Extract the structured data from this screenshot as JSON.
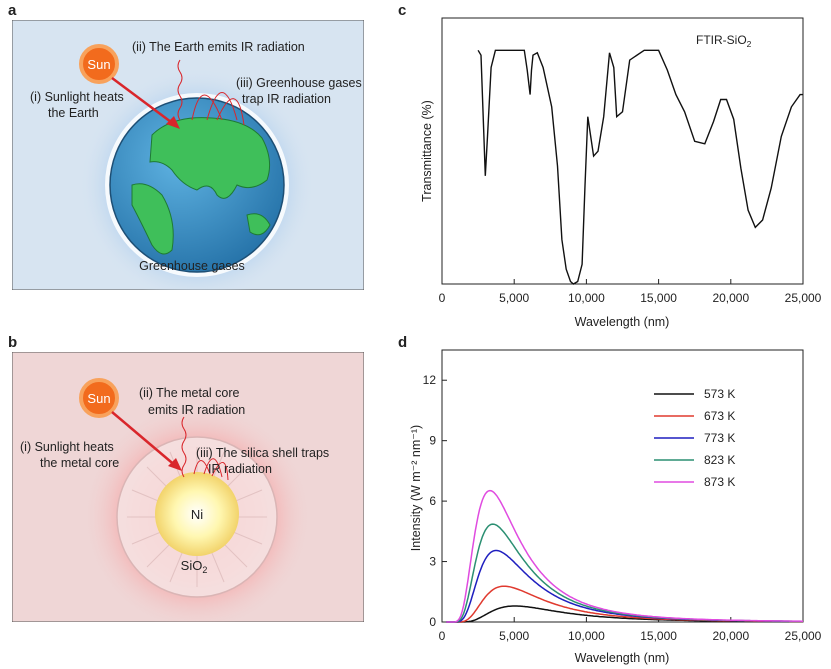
{
  "panels": {
    "a": {
      "letter": "a",
      "sun": "Sun",
      "step1_line1": "(i) Sunlight heats",
      "step1_line2": "the Earth",
      "step2": "(ii) The Earth emits IR radiation",
      "step3_line1": "(iii) Greenhouse gases",
      "step3_line2": "trap IR radiation",
      "caption": "Greenhouse gases"
    },
    "b": {
      "letter": "b",
      "sun": "Sun",
      "step1_line1": "(i) Sunlight heats",
      "step1_line2": "the metal core",
      "step2_line1": "(ii) The metal core",
      "step2_line2": "emits IR radiation",
      "step3_line1": "(iii) The silica shell traps",
      "step3_line2": "IR radiation",
      "core": "Ni",
      "shell": "SiO",
      "shell_sub": "2"
    },
    "c": {
      "letter": "c"
    },
    "d": {
      "letter": "d"
    }
  },
  "colors": {
    "sun": "#f26b1d",
    "arrow": "#d9262b",
    "ocean": "#3a8fc6",
    "land": "#3fbf5a",
    "halo": "#b7d3ee",
    "panel_a_bg": "#d7e4f1",
    "panel_b_bg": "#efd6d6"
  },
  "chart_data": [
    {
      "type": "line",
      "panel": "c",
      "annotation": "FTIR-SiO",
      "annotation_sub": "2",
      "xlabel": "Wavelength (nm)",
      "ylabel": "Transmittance (%)",
      "xlim": [
        0,
        25000
      ],
      "ylim": [
        0,
        100
      ],
      "xticks": [
        0,
        5000,
        10000,
        15000,
        20000,
        25000
      ],
      "xtick_labels": [
        "0",
        "5,000",
        "10,000",
        "15,000",
        "20,000",
        "25,000"
      ],
      "yticks": [],
      "series": [
        {
          "color": "#111111",
          "x": [
            2500,
            2700,
            2900,
            3000,
            3150,
            3400,
            3700,
            4000,
            5000,
            5700,
            5900,
            6100,
            6200,
            6300,
            6600,
            7000,
            7600,
            8000,
            8300,
            8600,
            8900,
            9100,
            9400,
            9700,
            9900,
            10100,
            10300,
            10500,
            10800,
            11200,
            11600,
            11900,
            12100,
            12500,
            13000,
            14000,
            15000,
            15600,
            16200,
            16800,
            17500,
            18200,
            18800,
            19300,
            19700,
            20200,
            20700,
            21200,
            21700,
            22200,
            22800,
            23500,
            24200,
            24800,
            25000
          ],
          "y": [
            95,
            93,
            60,
            44,
            60,
            88,
            95,
            95,
            95,
            95,
            87,
            77,
            87,
            93,
            94,
            88,
            72,
            48,
            18,
            6,
            1,
            0,
            1,
            8,
            40,
            68,
            60,
            52,
            54,
            68,
            94,
            88,
            68,
            70,
            91,
            95,
            95,
            87,
            77,
            70,
            58,
            57,
            66,
            75,
            75,
            67,
            47,
            30,
            23,
            26,
            39,
            60,
            72,
            77,
            77
          ]
        }
      ]
    },
    {
      "type": "line",
      "panel": "d",
      "xlabel": "Wavelength (nm)",
      "ylabel": "Intensity (W m⁻² nm⁻¹)",
      "xlim": [
        0,
        25000
      ],
      "ylim": [
        0,
        13.5
      ],
      "xticks": [
        0,
        5000,
        10000,
        15000,
        20000,
        25000
      ],
      "xtick_labels": [
        "0",
        "5,000",
        "10,000",
        "15,000",
        "20,000",
        "25,000"
      ],
      "yticks": [
        0,
        3,
        6,
        9,
        12
      ],
      "ytick_labels": [
        "0",
        "3",
        "6",
        "9",
        "12"
      ],
      "legend_position": "top-right",
      "blackbody": true,
      "series": [
        {
          "name": "573 K",
          "temperature": 573,
          "color": "#111111"
        },
        {
          "name": "673 K",
          "temperature": 673,
          "color": "#e03a2f"
        },
        {
          "name": "773 K",
          "temperature": 773,
          "color": "#1f1fbf"
        },
        {
          "name": "823 K",
          "temperature": 823,
          "color": "#2b8f72"
        },
        {
          "name": "873 K",
          "temperature": 873,
          "color": "#e04be0"
        }
      ]
    }
  ]
}
